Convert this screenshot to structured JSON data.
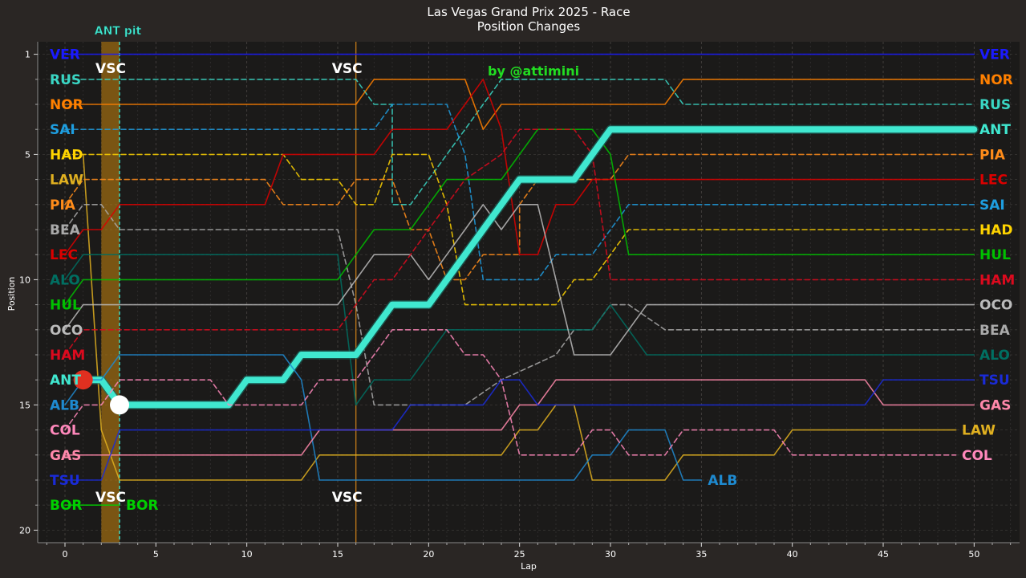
{
  "chart_data": {
    "type": "line",
    "title": "Las Vegas Grand Prix 2025 - Race",
    "subtitle": "Position Changes",
    "xlabel": "Lap",
    "ylabel": "Position",
    "xlim": [
      -1.5,
      52.5
    ],
    "ylim": [
      20.5,
      0.5
    ],
    "x_ticks": [
      0,
      5,
      10,
      15,
      20,
      25,
      30,
      35,
      40,
      45,
      50
    ],
    "y_ticks": [
      1,
      5,
      10,
      15,
      20
    ],
    "grid": true,
    "credit": "by @attimini",
    "credit_color": "#22dd22",
    "vsc_label": "VSC",
    "vsc_laps": [
      3,
      16
    ],
    "pit_label": "ANT pit",
    "pit_lap": 3,
    "pit_span": [
      2,
      3
    ],
    "highlight_driver": "ANT",
    "series": [
      {
        "name": "VER",
        "color": "#1a1aff",
        "dash": false,
        "points": [
          [
            0,
            1
          ],
          [
            50,
            1
          ]
        ]
      },
      {
        "name": "RUS",
        "color": "#3ad6c4",
        "dash": true,
        "points": [
          [
            0,
            2
          ],
          [
            16,
            2
          ],
          [
            17,
            3
          ],
          [
            17,
            3
          ],
          [
            18,
            3
          ],
          [
            18,
            7
          ],
          [
            19,
            7
          ],
          [
            20,
            6
          ],
          [
            21,
            5
          ],
          [
            22,
            4
          ],
          [
            23,
            3
          ],
          [
            24,
            2
          ],
          [
            33,
            2
          ],
          [
            34,
            3
          ],
          [
            50,
            3
          ]
        ]
      },
      {
        "name": "NOR",
        "color": "#ff8000",
        "dash": false,
        "points": [
          [
            0,
            3
          ],
          [
            16,
            3
          ],
          [
            17,
            2
          ],
          [
            22,
            2
          ],
          [
            23,
            4
          ],
          [
            24,
            3
          ],
          [
            25,
            3
          ],
          [
            30,
            3
          ],
          [
            33,
            3
          ],
          [
            34,
            2
          ],
          [
            50,
            2
          ]
        ]
      },
      {
        "name": "SAI",
        "color": "#1e9ee0",
        "dash": true,
        "points": [
          [
            0,
            4
          ],
          [
            16,
            4
          ],
          [
            17,
            4
          ],
          [
            18,
            3
          ],
          [
            21,
            3
          ],
          [
            22,
            5
          ],
          [
            23,
            10
          ],
          [
            26,
            10
          ],
          [
            27,
            9
          ],
          [
            29,
            9
          ],
          [
            30,
            8
          ],
          [
            31,
            7
          ],
          [
            50,
            7
          ]
        ]
      },
      {
        "name": "HAD",
        "color": "#ffd400",
        "dash": true,
        "points": [
          [
            0,
            5
          ],
          [
            12,
            5
          ],
          [
            13,
            6
          ],
          [
            15,
            6
          ],
          [
            16,
            7
          ],
          [
            17,
            7
          ],
          [
            18,
            5
          ],
          [
            20,
            5
          ],
          [
            21,
            7
          ],
          [
            22,
            11
          ],
          [
            27,
            11
          ],
          [
            28,
            10
          ],
          [
            29,
            10
          ],
          [
            30,
            9
          ],
          [
            31,
            8
          ],
          [
            50,
            8
          ]
        ]
      },
      {
        "name": "LAW",
        "color": "#e0b020",
        "dash": false,
        "points": [
          [
            1,
            5
          ],
          [
            2,
            16
          ],
          [
            3,
            18
          ],
          [
            13,
            18
          ],
          [
            14,
            17
          ],
          [
            24,
            17
          ],
          [
            25,
            16
          ],
          [
            26,
            16
          ],
          [
            27,
            15
          ],
          [
            28,
            15
          ],
          [
            29,
            18
          ],
          [
            33,
            18
          ],
          [
            34,
            17
          ],
          [
            39,
            17
          ],
          [
            40,
            16
          ],
          [
            49,
            16
          ]
        ]
      },
      {
        "name": "PIA",
        "color": "#ff8c1a",
        "dash": true,
        "points": [
          [
            0,
            7
          ],
          [
            1,
            6
          ],
          [
            11,
            6
          ],
          [
            12,
            7
          ],
          [
            15,
            7
          ],
          [
            16,
            6
          ],
          [
            18,
            6
          ],
          [
            19,
            8
          ],
          [
            20,
            8
          ],
          [
            21,
            10
          ],
          [
            22,
            10
          ],
          [
            23,
            9
          ],
          [
            25,
            9
          ],
          [
            25,
            7
          ],
          [
            26,
            6
          ],
          [
            30,
            6
          ],
          [
            31,
            5
          ],
          [
            50,
            5
          ]
        ]
      },
      {
        "name": "BEA",
        "color": "#aaaaaa",
        "dash": true,
        "points": [
          [
            0,
            8
          ],
          [
            1,
            7
          ],
          [
            2,
            7
          ],
          [
            3,
            8
          ],
          [
            15,
            8
          ],
          [
            16,
            11
          ],
          [
            17,
            15
          ],
          [
            22,
            15
          ],
          [
            24,
            14
          ],
          [
            27,
            13
          ],
          [
            28,
            12
          ],
          [
            29,
            12
          ],
          [
            30,
            11
          ],
          [
            31,
            11
          ],
          [
            33,
            12
          ],
          [
            50,
            12
          ]
        ]
      },
      {
        "name": "LEC",
        "color": "#dc0000",
        "dash": false,
        "points": [
          [
            0,
            9
          ],
          [
            1,
            8
          ],
          [
            2,
            8
          ],
          [
            3,
            7
          ],
          [
            11,
            7
          ],
          [
            12,
            5
          ],
          [
            17,
            5
          ],
          [
            18,
            4
          ],
          [
            21,
            4
          ],
          [
            22,
            3
          ],
          [
            23,
            2
          ],
          [
            24,
            4
          ],
          [
            25,
            9
          ],
          [
            26,
            9
          ],
          [
            27,
            7
          ],
          [
            28,
            7
          ],
          [
            29,
            6
          ],
          [
            50,
            6
          ]
        ]
      },
      {
        "name": "ALO",
        "color": "#006f62",
        "dash": false,
        "points": [
          [
            0,
            10
          ],
          [
            1,
            9
          ],
          [
            15,
            9
          ],
          [
            16,
            15
          ],
          [
            17,
            14
          ],
          [
            19,
            14
          ],
          [
            20,
            13
          ],
          [
            21,
            12
          ],
          [
            29,
            12
          ],
          [
            30,
            11
          ],
          [
            31,
            12
          ],
          [
            32,
            13
          ],
          [
            50,
            13
          ]
        ]
      },
      {
        "name": "HUL",
        "color": "#00c000",
        "dash": false,
        "points": [
          [
            0,
            11
          ],
          [
            1,
            10
          ],
          [
            15,
            10
          ],
          [
            16,
            9
          ],
          [
            17,
            8
          ],
          [
            19,
            8
          ],
          [
            20,
            7
          ],
          [
            21,
            6
          ],
          [
            24,
            6
          ],
          [
            25,
            5
          ],
          [
            26,
            4
          ],
          [
            29,
            4
          ],
          [
            30,
            5
          ],
          [
            31,
            9
          ],
          [
            50,
            9
          ]
        ]
      },
      {
        "name": "OCO",
        "color": "#bbbbbb",
        "dash": false,
        "points": [
          [
            0,
            12
          ],
          [
            1,
            11
          ],
          [
            15,
            11
          ],
          [
            16,
            10
          ],
          [
            17,
            9
          ],
          [
            19,
            9
          ],
          [
            20,
            10
          ],
          [
            21,
            9
          ],
          [
            22,
            8
          ],
          [
            23,
            7
          ],
          [
            24,
            8
          ],
          [
            25,
            7
          ],
          [
            26,
            7
          ],
          [
            28,
            13
          ],
          [
            30,
            13
          ],
          [
            31,
            12
          ],
          [
            32,
            11
          ],
          [
            50,
            11
          ]
        ]
      },
      {
        "name": "HAM",
        "color": "#dc0a1e",
        "dash": true,
        "points": [
          [
            0,
            13
          ],
          [
            1,
            12
          ],
          [
            15,
            12
          ],
          [
            16,
            11
          ],
          [
            17,
            10
          ],
          [
            18,
            10
          ],
          [
            19,
            9
          ],
          [
            20,
            8
          ],
          [
            21,
            7
          ],
          [
            22,
            6
          ],
          [
            24,
            5
          ],
          [
            25,
            4
          ],
          [
            28,
            4
          ],
          [
            29,
            5
          ],
          [
            30,
            10
          ],
          [
            31,
            10
          ],
          [
            50,
            10
          ]
        ]
      },
      {
        "name": "ANT",
        "color": "#40e8d0",
        "dash": false,
        "points": [
          [
            1,
            14
          ],
          [
            2,
            14
          ],
          [
            3,
            15
          ],
          [
            9,
            15
          ],
          [
            10,
            14
          ],
          [
            12,
            14
          ],
          [
            13,
            13
          ],
          [
            16,
            13
          ],
          [
            17,
            12
          ],
          [
            18,
            11
          ],
          [
            20,
            11
          ],
          [
            21,
            10
          ],
          [
            22,
            9
          ],
          [
            23,
            8
          ],
          [
            24,
            7
          ],
          [
            25,
            6
          ],
          [
            28,
            6
          ],
          [
            29,
            5
          ],
          [
            30,
            4
          ],
          [
            50,
            4
          ]
        ]
      },
      {
        "name": "ALB",
        "color": "#1e8ad0",
        "dash": false,
        "points": [
          [
            0,
            15
          ],
          [
            1,
            14
          ],
          [
            2,
            14
          ],
          [
            3,
            13
          ],
          [
            12,
            13
          ],
          [
            13,
            14
          ],
          [
            14,
            18
          ],
          [
            28,
            18
          ],
          [
            29,
            17
          ],
          [
            30,
            17
          ],
          [
            31,
            16
          ],
          [
            33,
            16
          ],
          [
            34,
            18
          ],
          [
            35,
            18
          ]
        ]
      },
      {
        "name": "COL",
        "color": "#ff88bb",
        "dash": true,
        "points": [
          [
            0,
            16
          ],
          [
            1,
            15
          ],
          [
            2,
            15
          ],
          [
            3,
            14
          ],
          [
            8,
            14
          ],
          [
            9,
            15
          ],
          [
            12,
            15
          ],
          [
            13,
            15
          ],
          [
            14,
            14
          ],
          [
            16,
            14
          ],
          [
            17,
            13
          ],
          [
            18,
            12
          ],
          [
            21,
            12
          ],
          [
            22,
            13
          ],
          [
            23,
            13
          ],
          [
            24,
            14
          ],
          [
            25,
            17
          ],
          [
            28,
            17
          ],
          [
            29,
            16
          ],
          [
            30,
            16
          ],
          [
            31,
            17
          ],
          [
            33,
            17
          ],
          [
            34,
            16
          ],
          [
            39,
            16
          ],
          [
            40,
            17
          ],
          [
            49,
            17
          ]
        ]
      },
      {
        "name": "GAS",
        "color": "#ff88aa",
        "dash": false,
        "points": [
          [
            0,
            17
          ],
          [
            13,
            17
          ],
          [
            14,
            16
          ],
          [
            24,
            16
          ],
          [
            25,
            15
          ],
          [
            26,
            15
          ],
          [
            27,
            14
          ],
          [
            44,
            14
          ],
          [
            45,
            15
          ],
          [
            50,
            15
          ]
        ]
      },
      {
        "name": "TSU",
        "color": "#1a2bd8",
        "dash": false,
        "points": [
          [
            0,
            18
          ],
          [
            2,
            18
          ],
          [
            3,
            16
          ],
          [
            18,
            16
          ],
          [
            19,
            15
          ],
          [
            23,
            15
          ],
          [
            24,
            14
          ],
          [
            25,
            14
          ],
          [
            26,
            15
          ],
          [
            33,
            15
          ],
          [
            35,
            15
          ],
          [
            44,
            15
          ],
          [
            45,
            14
          ],
          [
            50,
            14
          ]
        ]
      },
      {
        "name": "BOR",
        "color": "#00d000",
        "dash": false,
        "points": [
          [
            0,
            19
          ],
          [
            3,
            19
          ]
        ]
      }
    ],
    "start_labels": [
      "VER",
      "RUS",
      "NOR",
      "SAI",
      "HAD",
      "LAW",
      "PIA",
      "BEA",
      "LEC",
      "ALO",
      "HUL",
      "OCO",
      "HAM",
      "ANT",
      "ALB",
      "COL",
      "GAS",
      "TSU",
      "BOR"
    ],
    "end_labels": [
      {
        "name": "VER",
        "pos": 1
      },
      {
        "name": "NOR",
        "pos": 2
      },
      {
        "name": "RUS",
        "pos": 3
      },
      {
        "name": "ANT",
        "pos": 4
      },
      {
        "name": "PIA",
        "pos": 5
      },
      {
        "name": "LEC",
        "pos": 6
      },
      {
        "name": "SAI",
        "pos": 7
      },
      {
        "name": "HAD",
        "pos": 8
      },
      {
        "name": "HUL",
        "pos": 9
      },
      {
        "name": "HAM",
        "pos": 10
      },
      {
        "name": "OCO",
        "pos": 11
      },
      {
        "name": "BEA",
        "pos": 12
      },
      {
        "name": "ALO",
        "pos": 13
      },
      {
        "name": "TSU",
        "pos": 14
      },
      {
        "name": "GAS",
        "pos": 15
      },
      {
        "name": "LAW",
        "pos": 16
      },
      {
        "name": "COL",
        "pos": 17
      }
    ],
    "dnf_labels": [
      {
        "name": "ALB",
        "lap": 35,
        "pos": 18
      },
      {
        "name": "BOR",
        "lap": 3,
        "pos": 19
      }
    ],
    "markers": [
      {
        "lap": 1,
        "pos": 14,
        "color": "#e03020"
      },
      {
        "lap": 3,
        "pos": 15,
        "color": "#ffffff"
      }
    ]
  }
}
